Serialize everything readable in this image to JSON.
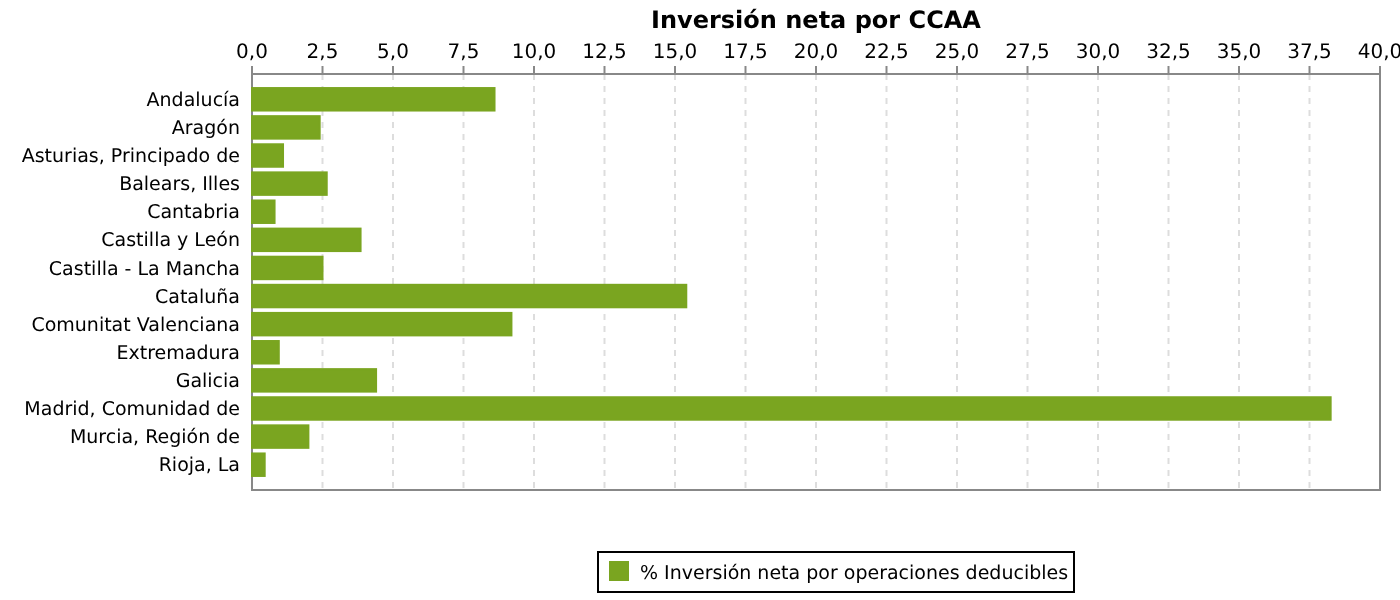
{
  "chart_data": {
    "type": "bar",
    "orientation": "horizontal",
    "title": "Inversión neta por CCAA",
    "categories": [
      "Andalucía",
      "Aragón",
      "Asturias, Principado de",
      "Balears, Illes",
      "Cantabria",
      "Castilla y León",
      "Castilla - La Mancha",
      "Cataluña",
      "Comunitat Valenciana",
      "Extremadura",
      "Galicia",
      "Madrid, Comunidad de",
      "Murcia, Región de",
      "Rioja, La"
    ],
    "series": [
      {
        "name": "% Inversión neta por operaciones deducibles",
        "color": "#7aa520",
        "values": [
          8.6,
          2.4,
          1.1,
          2.65,
          0.8,
          3.85,
          2.5,
          15.4,
          9.2,
          0.95,
          4.4,
          38.25,
          2.0,
          0.45
        ]
      }
    ],
    "xlim": [
      0,
      40
    ],
    "xticks": [
      {
        "value": 0,
        "label": "0,0"
      },
      {
        "value": 2.5,
        "label": "2,5"
      },
      {
        "value": 5,
        "label": "5,0"
      },
      {
        "value": 7.5,
        "label": "7,5"
      },
      {
        "value": 10,
        "label": "10,0"
      },
      {
        "value": 12.5,
        "label": "12,5"
      },
      {
        "value": 15,
        "label": "15,0"
      },
      {
        "value": 17.5,
        "label": "17,5"
      },
      {
        "value": 20,
        "label": "20,0"
      },
      {
        "value": 22.5,
        "label": "22,5"
      },
      {
        "value": 25,
        "label": "25,0"
      },
      {
        "value": 27.5,
        "label": "27,5"
      },
      {
        "value": 30,
        "label": "30,0"
      },
      {
        "value": 32.5,
        "label": "32,5"
      },
      {
        "value": 35,
        "label": "35,0"
      },
      {
        "value": 37.5,
        "label": "37,5"
      },
      {
        "value": 40,
        "label": "40,0"
      }
    ],
    "grid": "x",
    "legend": "bottom"
  }
}
